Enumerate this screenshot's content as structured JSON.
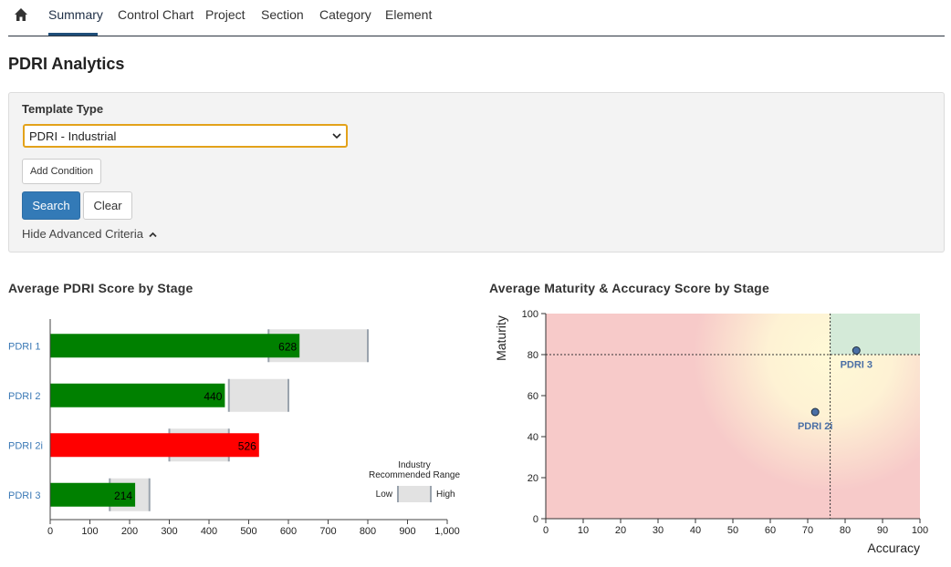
{
  "nav": {
    "home_icon": "home-icon",
    "tabs": [
      {
        "label": "Summary",
        "active": true
      },
      {
        "label": "Control Chart",
        "active": false
      },
      {
        "label": "Project",
        "active": false
      },
      {
        "label": "Section",
        "active": false
      },
      {
        "label": "Category",
        "active": false
      },
      {
        "label": "Element",
        "active": false
      }
    ]
  },
  "page": {
    "title": "PDRI Analytics"
  },
  "criteria": {
    "template_label": "Template Type",
    "template_value": "PDRI - Industrial",
    "add_condition": "Add Condition",
    "search": "Search",
    "clear": "Clear",
    "hide_advanced": "Hide Advanced Criteria"
  },
  "colors": {
    "accent": "#337ab7",
    "focus_border": "#e3a21a",
    "bar_good": "#008000",
    "bar_bad": "#ff0000",
    "range_fill": "#e2e2e2",
    "zone_red": "#f7cac9",
    "zone_yellow": "#fff9d6",
    "zone_green": "#d4ead8",
    "point": "#4a6fa5"
  },
  "chart_data": [
    {
      "type": "bar",
      "title": "Average PDRI Score by Stage",
      "orientation": "horizontal",
      "categories": [
        "PDRI 1",
        "PDRI 2",
        "PDRI 2i",
        "PDRI 3"
      ],
      "values": [
        628,
        440,
        526,
        214
      ],
      "value_labels": [
        "628",
        "440",
        "526",
        "214"
      ],
      "bar_colors": [
        "#008000",
        "#008000",
        "#ff0000",
        "#008000"
      ],
      "ranges": [
        [
          550,
          800
        ],
        [
          450,
          600
        ],
        [
          300,
          450
        ],
        [
          150,
          250
        ]
      ],
      "xlim": [
        0,
        1000
      ],
      "xticks": [
        "0",
        "100",
        "200",
        "300",
        "400",
        "500",
        "600",
        "700",
        "800",
        "900",
        "1,000"
      ],
      "legend": {
        "title": [
          "Industry",
          "Recommended Range"
        ],
        "low": "Low",
        "high": "High",
        "placement": "bottom-right"
      }
    },
    {
      "type": "scatter",
      "title": "Average Maturity & Accuracy Score by Stage",
      "xlabel": "Accuracy",
      "ylabel": "Maturity",
      "xlim": [
        0,
        100
      ],
      "ylim": [
        0,
        100
      ],
      "xticks": [
        "0",
        "10",
        "20",
        "30",
        "40",
        "50",
        "60",
        "70",
        "80",
        "90",
        "100"
      ],
      "yticks": [
        "0",
        "20",
        "40",
        "60",
        "80",
        "100"
      ],
      "threshold_x": 76,
      "threshold_y": 80,
      "points": [
        {
          "label": "PDRI 2i",
          "x": 72,
          "y": 52
        },
        {
          "label": "PDRI 3",
          "x": 83,
          "y": 82
        }
      ]
    }
  ]
}
